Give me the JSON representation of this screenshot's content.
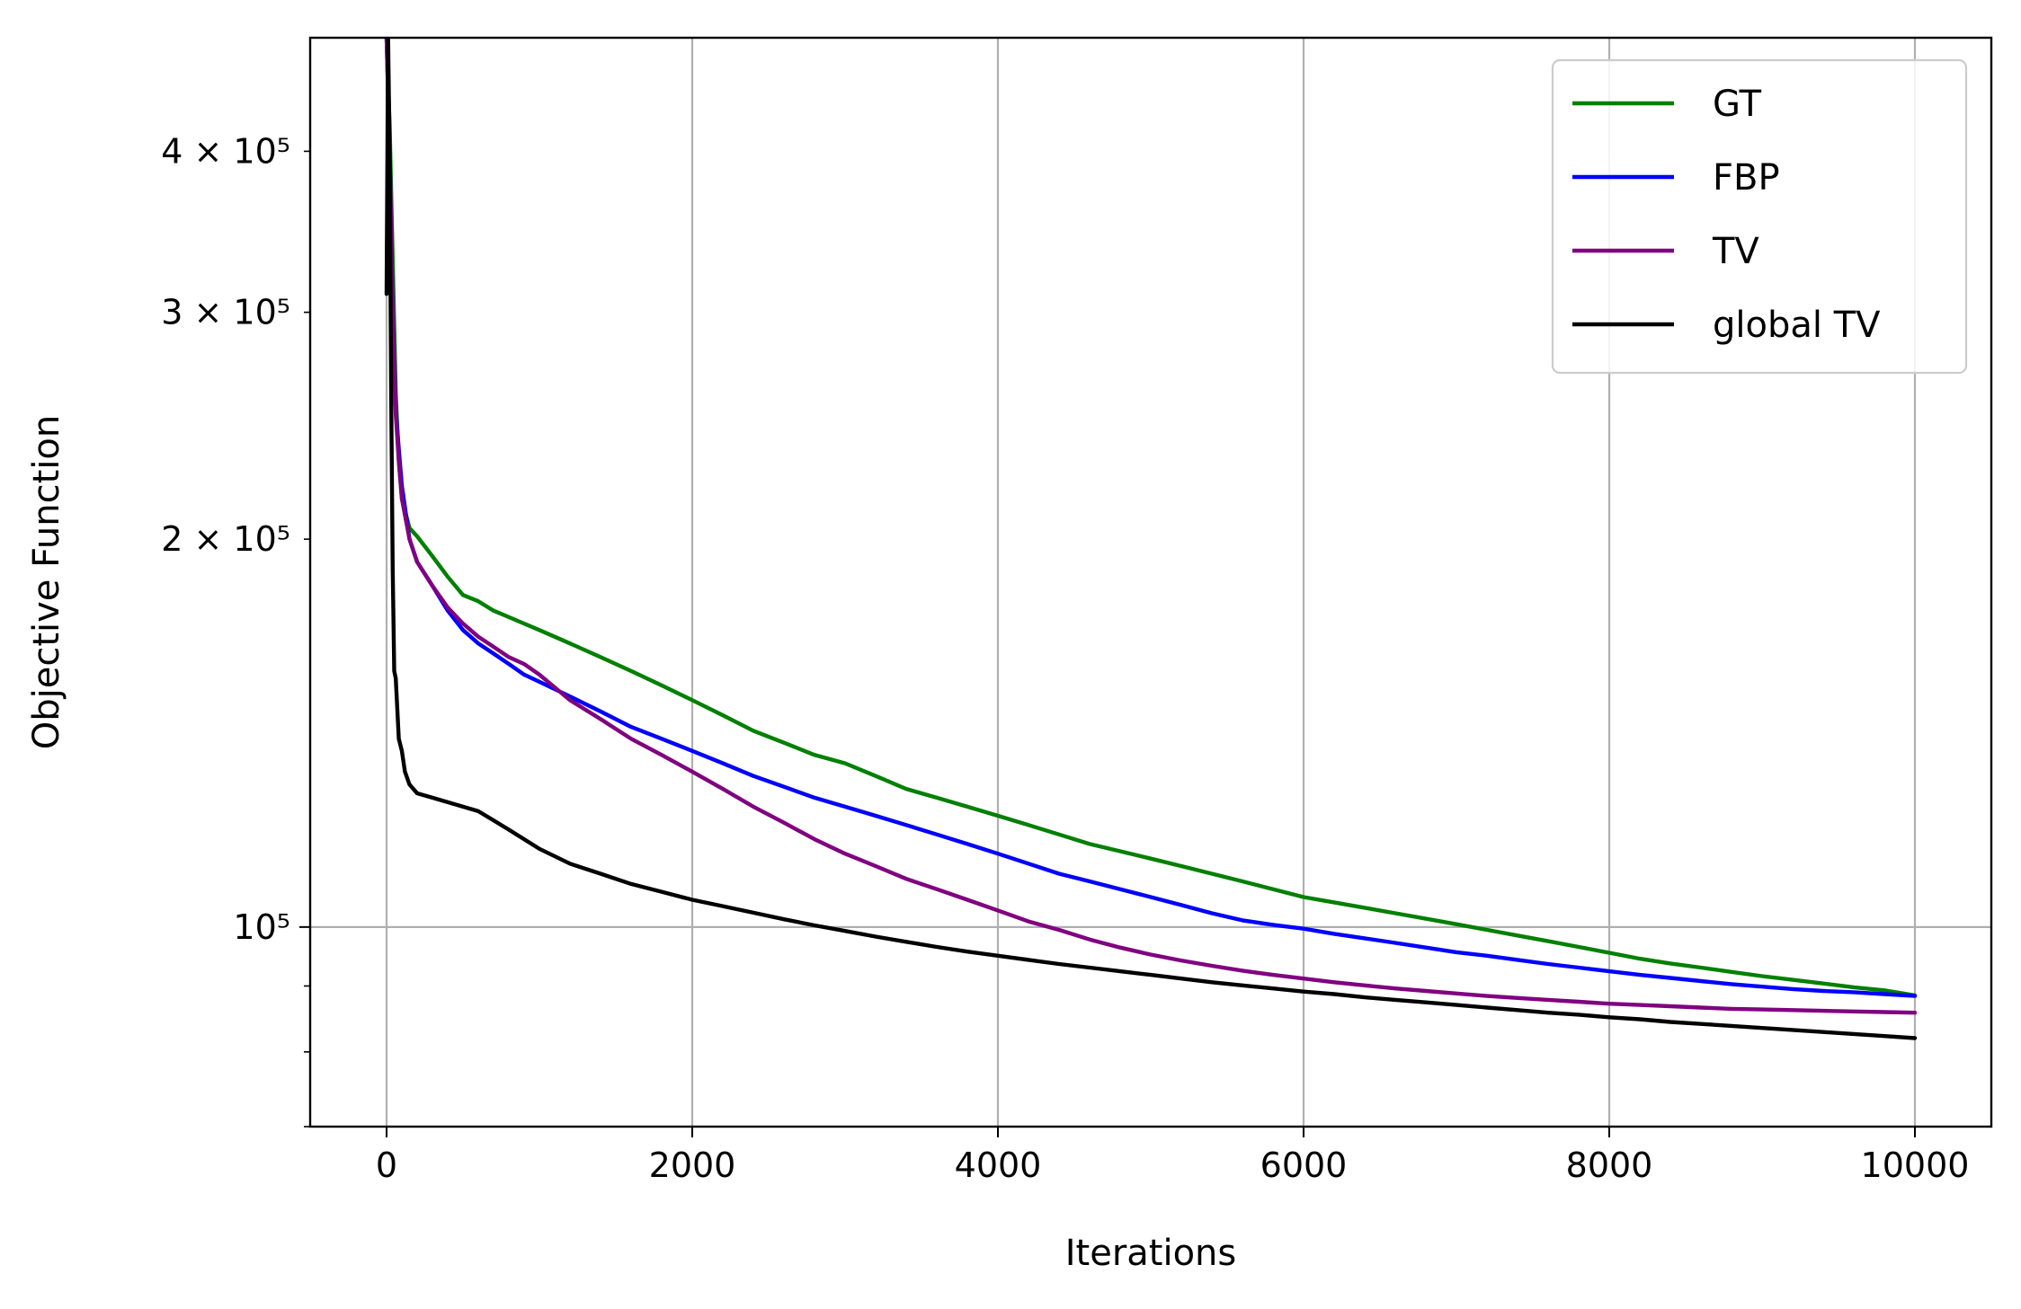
{
  "chart_data": {
    "type": "line",
    "title": "",
    "xlabel": "Iterations",
    "ylabel": "Objective Function",
    "xlim": [
      -500,
      10500
    ],
    "ylim": [
      70000,
      490000
    ],
    "yscale": "log",
    "grid": true,
    "legend_position": "top-right",
    "x_ticks": [
      {
        "value": 0,
        "label": "0"
      },
      {
        "value": 2000,
        "label": "2000"
      },
      {
        "value": 4000,
        "label": "4000"
      },
      {
        "value": 6000,
        "label": "6000"
      },
      {
        "value": 8000,
        "label": "8000"
      },
      {
        "value": 10000,
        "label": "10000"
      }
    ],
    "y_major_ticks": [
      {
        "value": 100000,
        "label": "10⁵"
      }
    ],
    "y_minor_ticks": [
      {
        "value": 200000,
        "label": "2 × 10⁵"
      },
      {
        "value": 300000,
        "label": "3 × 10⁵"
      },
      {
        "value": 400000,
        "label": "4 × 10⁵"
      },
      {
        "value": 70000,
        "label": ""
      },
      {
        "value": 80000,
        "label": ""
      },
      {
        "value": 90000,
        "label": ""
      }
    ],
    "series": [
      {
        "name": "GT",
        "color": "#008000",
        "x": [
          0,
          20,
          40,
          60,
          80,
          100,
          150,
          200,
          300,
          400,
          500,
          600,
          700,
          800,
          900,
          1000,
          1200,
          1400,
          1600,
          1800,
          2000,
          2200,
          2400,
          2600,
          2800,
          3000,
          3200,
          3400,
          3600,
          3800,
          4000,
          4200,
          4400,
          4600,
          4800,
          5000,
          5200,
          5400,
          5600,
          5800,
          6000,
          6200,
          6400,
          6600,
          6800,
          7000,
          7200,
          7400,
          7600,
          7800,
          8000,
          8200,
          8400,
          8600,
          8800,
          9000,
          9200,
          9400,
          9600,
          9800,
          10000
        ],
        "y": [
          490000,
          420000,
          330000,
          260000,
          230000,
          215000,
          204000,
          201000,
          194000,
          187000,
          181000,
          179000,
          176000,
          174000,
          172000,
          170000,
          166000,
          162000,
          158000,
          154000,
          150000,
          146000,
          142000,
          139000,
          136000,
          134000,
          131000,
          128000,
          126000,
          124000,
          122000,
          120000,
          118000,
          116000,
          114500,
          113000,
          111500,
          110000,
          108500,
          107000,
          105500,
          104500,
          103500,
          102500,
          101500,
          100500,
          99500,
          98500,
          97500,
          96500,
          95500,
          94500,
          93700,
          93000,
          92300,
          91600,
          91000,
          90400,
          89800,
          89300,
          88500
        ]
      },
      {
        "name": "FBP",
        "color": "#0000ff",
        "x": [
          0,
          20,
          40,
          60,
          80,
          100,
          150,
          200,
          300,
          400,
          500,
          600,
          700,
          800,
          900,
          1000,
          1200,
          1400,
          1600,
          1800,
          2000,
          2200,
          2400,
          2600,
          2800,
          3000,
          3200,
          3400,
          3600,
          3800,
          4000,
          4200,
          4400,
          4600,
          4800,
          5000,
          5200,
          5400,
          5600,
          5800,
          6000,
          6200,
          6400,
          6600,
          6800,
          7000,
          7200,
          7400,
          7600,
          7800,
          8000,
          8200,
          8400,
          8600,
          8800,
          9000,
          9200,
          9400,
          9600,
          9800,
          10000
        ],
        "y": [
          490000,
          400000,
          300000,
          252000,
          235000,
          220000,
          200000,
          192000,
          184000,
          176000,
          170000,
          166000,
          163000,
          160000,
          157000,
          155000,
          151000,
          147000,
          143000,
          140000,
          137000,
          134000,
          131000,
          128500,
          126000,
          124000,
          122000,
          120000,
          118000,
          116000,
          114000,
          112000,
          110000,
          108500,
          107000,
          105500,
          104000,
          102500,
          101200,
          100400,
          99700,
          98800,
          98000,
          97200,
          96400,
          95600,
          95000,
          94300,
          93600,
          93000,
          92400,
          91800,
          91300,
          90800,
          90300,
          89900,
          89500,
          89200,
          89000,
          88700,
          88400
        ]
      },
      {
        "name": "TV",
        "color": "#800080",
        "x": [
          0,
          20,
          40,
          60,
          80,
          100,
          150,
          200,
          300,
          400,
          500,
          600,
          700,
          800,
          900,
          1000,
          1200,
          1400,
          1600,
          1800,
          2000,
          2200,
          2400,
          2600,
          2800,
          3000,
          3200,
          3400,
          3600,
          3800,
          4000,
          4200,
          4400,
          4600,
          4800,
          5000,
          5200,
          5400,
          5600,
          5800,
          6000,
          6200,
          6400,
          6600,
          6800,
          7000,
          7200,
          7400,
          7600,
          7800,
          8000,
          8200,
          8400,
          8600,
          8800,
          9000,
          9200,
          9400,
          9600,
          9800,
          10000
        ],
        "y": [
          490000,
          400000,
          300000,
          250000,
          230000,
          215000,
          200000,
          192000,
          184000,
          177000,
          172000,
          168000,
          165000,
          162000,
          160000,
          157000,
          150000,
          145000,
          140000,
          136000,
          132000,
          128000,
          124000,
          120500,
          117000,
          114000,
          111500,
          109000,
          107000,
          105000,
          103000,
          101000,
          99500,
          97800,
          96400,
          95200,
          94200,
          93300,
          92500,
          91800,
          91200,
          90600,
          90100,
          89600,
          89200,
          88800,
          88400,
          88100,
          87800,
          87500,
          87200,
          87000,
          86800,
          86600,
          86400,
          86300,
          86200,
          86100,
          86000,
          85900,
          85800
        ]
      },
      {
        "name": "global TV",
        "color": "#000000",
        "x": [
          0,
          10,
          20,
          30,
          40,
          50,
          60,
          80,
          100,
          120,
          150,
          200,
          300,
          400,
          500,
          600,
          700,
          800,
          900,
          1000,
          1200,
          1400,
          1600,
          1800,
          2000,
          2200,
          2400,
          2600,
          2800,
          3000,
          3200,
          3400,
          3600,
          3800,
          4000,
          4200,
          4400,
          4600,
          4800,
          5000,
          5200,
          5400,
          5600,
          5800,
          6000,
          6200,
          6400,
          6600,
          6800,
          7000,
          7200,
          7400,
          7600,
          7800,
          8000,
          8200,
          8400,
          8600,
          8800,
          9000,
          9200,
          9400,
          9600,
          9800,
          10000
        ],
        "y": [
          310000,
          490000,
          400000,
          260000,
          190000,
          158000,
          156000,
          140000,
          137000,
          132000,
          129000,
          127000,
          126000,
          125000,
          124000,
          123000,
          121000,
          119000,
          117000,
          115000,
          112000,
          110000,
          108000,
          106500,
          105000,
          103800,
          102600,
          101400,
          100300,
          99300,
          98300,
          97400,
          96500,
          95700,
          95000,
          94300,
          93600,
          93000,
          92400,
          91800,
          91200,
          90600,
          90100,
          89600,
          89100,
          88700,
          88200,
          87800,
          87400,
          87000,
          86600,
          86200,
          85800,
          85500,
          85100,
          84800,
          84400,
          84100,
          83800,
          83500,
          83200,
          82900,
          82600,
          82300,
          82000
        ]
      }
    ]
  }
}
